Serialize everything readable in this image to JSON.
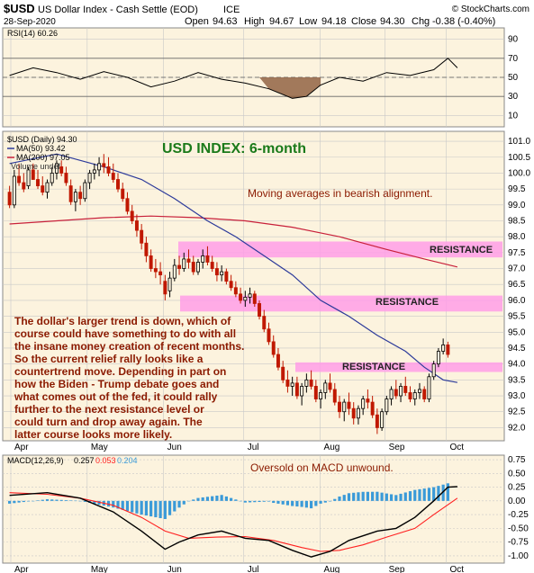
{
  "header": {
    "symbol": "$USD",
    "name": "US Dollar Index - Cash Settle (EOD)",
    "exchange": "ICE",
    "date": "28-Sep-2020",
    "open_label": "Open",
    "open": "94.63",
    "high_label": "High",
    "high": "94.67",
    "low_label": "Low",
    "low": "94.18",
    "close_label": "Close",
    "close": "94.30",
    "chg_label": "Chg",
    "chg": "-0.38 (-0.40%)",
    "credit": "© StockCharts.com"
  },
  "colors": {
    "panel_bg": "#fcf3de",
    "grid": "#c8c8c8",
    "candle_up": "#000000",
    "candle_down": "#c01800",
    "ma50": "#2c3a9a",
    "ma200": "#c8203a",
    "resistance": "#ff9ee8",
    "rsi_line": "#000000",
    "rsi_oversold_fill": "#8b5a3a",
    "macd_line": "#000000",
    "signal_line": "#ff2020",
    "histogram": "#3a9ad8",
    "title_green": "#1a7a1a",
    "annotation_red": "#8b1a00"
  },
  "x_axis": {
    "months": [
      "Apr",
      "May",
      "Jun",
      "Jul",
      "Aug",
      "Sep",
      "Oct"
    ]
  },
  "rsi_panel": {
    "legend": "RSI(14) 60.26",
    "ticks": [
      "90",
      "70",
      "50",
      "30",
      "10"
    ]
  },
  "price_panel": {
    "legend_title": "$USD (Daily) 94.30",
    "legend_ma50": "MA(50) 93.42",
    "legend_ma200": "MA(200) 97.05",
    "legend_volume": "Volume undef",
    "title": "USD INDEX: 6-month",
    "note_ma": "Moving averages in bearish alignment.",
    "resistance_label": "RESISTANCE",
    "commentary": [
      "The dollar's larger trend is down, which of",
      "course could have something to do with all",
      "the insane money creation of recent months.",
      "So the current relief rally looks like a",
      "countertrend move. Depending in part on",
      "how the Biden - Trump debate goes and",
      "what comes out of the fed, it could rally",
      "further to the next resistance level or",
      "could turn and drop away again. The",
      "latter course looks more likely."
    ],
    "ticks": [
      "101.0",
      "100.5",
      "100.0",
      "99.5",
      "99.0",
      "98.5",
      "98.0",
      "97.5",
      "97.0",
      "96.5",
      "96.0",
      "95.5",
      "95.0",
      "94.5",
      "94.0",
      "93.5",
      "93.0",
      "92.5",
      "92.0"
    ]
  },
  "macd_panel": {
    "legend_prefix": "MACD(12,26,9)",
    "legend_macd": "0.257",
    "legend_signal": "0.053",
    "legend_hist": "0.204",
    "note": "Oversold on MACD unwound.",
    "ticks": [
      "0.75",
      "0.50",
      "0.25",
      "0.00",
      "-0.25",
      "-0.50",
      "-0.75",
      "-1.00"
    ]
  },
  "chart_data": {
    "type": "candlestick",
    "title": "USD INDEX: 6-month",
    "ylim": [
      91.7,
      101.2
    ],
    "candles": [
      [
        99.4,
        99.6,
        98.9,
        99.0
      ],
      [
        99.0,
        100.1,
        98.9,
        99.9
      ],
      [
        99.9,
        100.3,
        99.6,
        99.7
      ],
      [
        99.7,
        100.0,
        99.4,
        99.5
      ],
      [
        99.6,
        100.2,
        99.5,
        100.1
      ],
      [
        100.1,
        100.3,
        99.8,
        99.8
      ],
      [
        99.8,
        100.1,
        99.5,
        99.6
      ],
      [
        99.6,
        99.9,
        99.3,
        99.4
      ],
      [
        99.4,
        99.8,
        99.2,
        99.7
      ],
      [
        99.7,
        100.2,
        99.6,
        100.0
      ],
      [
        100.0,
        100.4,
        99.8,
        100.3
      ],
      [
        100.2,
        100.4,
        99.9,
        100.0
      ],
      [
        100.0,
        100.2,
        99.6,
        99.7
      ],
      [
        99.6,
        99.8,
        99.0,
        99.1
      ],
      [
        99.1,
        99.5,
        98.8,
        99.4
      ],
      [
        99.4,
        99.6,
        99.0,
        99.2
      ],
      [
        99.2,
        99.8,
        99.1,
        99.7
      ],
      [
        99.7,
        100.1,
        99.5,
        100.0
      ],
      [
        100.0,
        100.3,
        99.8,
        100.1
      ],
      [
        100.1,
        100.5,
        99.9,
        100.3
      ],
      [
        100.3,
        100.6,
        100.0,
        100.2
      ],
      [
        100.2,
        100.5,
        99.9,
        100.0
      ],
      [
        100.0,
        100.3,
        99.7,
        99.8
      ],
      [
        99.8,
        100.0,
        99.4,
        99.5
      ],
      [
        99.5,
        99.7,
        99.1,
        99.2
      ],
      [
        99.2,
        99.4,
        98.7,
        98.8
      ],
      [
        98.8,
        99.0,
        98.4,
        98.5
      ],
      [
        98.5,
        98.7,
        98.0,
        98.2
      ],
      [
        98.2,
        98.4,
        97.6,
        97.8
      ],
      [
        97.8,
        98.0,
        97.2,
        97.4
      ],
      [
        97.4,
        97.6,
        96.9,
        97.0
      ],
      [
        97.0,
        97.3,
        96.7,
        96.9
      ],
      [
        96.9,
        97.2,
        96.5,
        96.8
      ],
      [
        96.6,
        96.8,
        96.0,
        96.2
      ],
      [
        96.3,
        96.9,
        96.1,
        96.7
      ],
      [
        96.7,
        97.3,
        96.6,
        97.1
      ],
      [
        97.1,
        97.4,
        96.8,
        97.0
      ],
      [
        97.0,
        97.5,
        96.9,
        97.3
      ],
      [
        97.3,
        97.6,
        97.0,
        97.2
      ],
      [
        97.2,
        97.4,
        96.8,
        96.9
      ],
      [
        96.9,
        97.3,
        96.8,
        97.2
      ],
      [
        97.2,
        97.6,
        97.0,
        97.4
      ],
      [
        97.4,
        97.7,
        97.1,
        97.2
      ],
      [
        97.2,
        97.4,
        96.9,
        97.0
      ],
      [
        97.0,
        97.2,
        96.6,
        96.8
      ],
      [
        96.8,
        97.1,
        96.6,
        96.9
      ],
      [
        96.9,
        97.0,
        96.5,
        96.6
      ],
      [
        96.6,
        96.8,
        96.3,
        96.4
      ],
      [
        96.4,
        96.6,
        96.1,
        96.2
      ],
      [
        96.2,
        96.4,
        95.9,
        96.0
      ],
      [
        96.0,
        96.3,
        95.8,
        96.1
      ],
      [
        96.1,
        96.4,
        95.9,
        96.2
      ],
      [
        96.2,
        96.3,
        95.8,
        95.9
      ],
      [
        95.9,
        96.0,
        95.4,
        95.5
      ],
      [
        95.5,
        95.7,
        95.0,
        95.1
      ],
      [
        95.1,
        95.3,
        94.6,
        94.7
      ],
      [
        94.7,
        94.9,
        94.2,
        94.3
      ],
      [
        94.3,
        94.5,
        93.8,
        93.9
      ],
      [
        93.9,
        94.1,
        93.4,
        93.5
      ],
      [
        93.5,
        93.8,
        93.1,
        93.3
      ],
      [
        93.3,
        93.6,
        93.0,
        93.4
      ],
      [
        93.4,
        93.6,
        92.9,
        93.0
      ],
      [
        93.0,
        93.4,
        92.7,
        93.3
      ],
      [
        93.3,
        93.7,
        93.1,
        93.5
      ],
      [
        93.5,
        93.8,
        93.2,
        93.3
      ],
      [
        93.3,
        93.5,
        92.8,
        92.9
      ],
      [
        92.9,
        93.2,
        92.6,
        93.1
      ],
      [
        93.1,
        93.5,
        92.9,
        93.4
      ],
      [
        93.4,
        93.7,
        93.1,
        93.2
      ],
      [
        93.2,
        93.4,
        92.7,
        92.8
      ],
      [
        92.8,
        93.0,
        92.3,
        92.5
      ],
      [
        92.5,
        92.9,
        92.2,
        92.8
      ],
      [
        92.8,
        93.1,
        92.4,
        92.6
      ],
      [
        92.6,
        92.8,
        92.1,
        92.3
      ],
      [
        92.3,
        92.7,
        92.1,
        92.6
      ],
      [
        92.6,
        93.0,
        92.4,
        92.9
      ],
      [
        92.9,
        93.2,
        92.6,
        92.8
      ],
      [
        92.8,
        93.0,
        92.3,
        92.4
      ],
      [
        92.4,
        92.6,
        91.8,
        92.0
      ],
      [
        92.0,
        92.6,
        91.9,
        92.5
      ],
      [
        92.5,
        93.0,
        92.4,
        92.9
      ],
      [
        92.9,
        93.3,
        92.7,
        93.2
      ],
      [
        93.2,
        93.5,
        92.9,
        93.0
      ],
      [
        93.0,
        93.4,
        92.8,
        93.3
      ],
      [
        93.3,
        93.6,
        93.0,
        93.1
      ],
      [
        93.1,
        93.3,
        92.8,
        92.9
      ],
      [
        92.9,
        93.2,
        92.7,
        93.1
      ],
      [
        93.1,
        93.4,
        92.9,
        93.2
      ],
      [
        93.2,
        93.3,
        92.8,
        92.9
      ],
      [
        92.9,
        93.7,
        92.8,
        93.6
      ],
      [
        93.6,
        94.1,
        93.5,
        94.0
      ],
      [
        94.0,
        94.5,
        93.9,
        94.4
      ],
      [
        94.4,
        94.8,
        94.3,
        94.6
      ],
      [
        94.6,
        94.7,
        94.2,
        94.3
      ]
    ],
    "ma50": [
      [
        0,
        100.3
      ],
      [
        10,
        100.6
      ],
      [
        20,
        100.2
      ],
      [
        28,
        99.8
      ],
      [
        35,
        99.2
      ],
      [
        42,
        98.5
      ],
      [
        48,
        98.0
      ],
      [
        54,
        97.4
      ],
      [
        60,
        96.8
      ],
      [
        66,
        96.0
      ],
      [
        72,
        95.5
      ],
      [
        78,
        94.9
      ],
      [
        84,
        94.4
      ],
      [
        88,
        93.9
      ],
      [
        92,
        93.5
      ],
      [
        95,
        93.42
      ]
    ],
    "ma200": [
      [
        0,
        98.4
      ],
      [
        10,
        98.5
      ],
      [
        20,
        98.6
      ],
      [
        30,
        98.65
      ],
      [
        40,
        98.6
      ],
      [
        50,
        98.5
      ],
      [
        60,
        98.3
      ],
      [
        70,
        98.0
      ],
      [
        80,
        97.6
      ],
      [
        88,
        97.3
      ],
      [
        95,
        97.05
      ]
    ],
    "resistance_zones": [
      [
        97.35,
        97.85
      ],
      [
        95.65,
        96.15
      ],
      [
        93.75,
        94.05
      ]
    ],
    "rsi": [
      [
        0,
        52
      ],
      [
        5,
        60
      ],
      [
        10,
        55
      ],
      [
        15,
        48
      ],
      [
        20,
        56
      ],
      [
        25,
        50
      ],
      [
        30,
        40
      ],
      [
        35,
        46
      ],
      [
        40,
        55
      ],
      [
        45,
        48
      ],
      [
        50,
        44
      ],
      [
        55,
        38
      ],
      [
        60,
        28
      ],
      [
        63,
        30
      ],
      [
        66,
        42
      ],
      [
        70,
        50
      ],
      [
        75,
        46
      ],
      [
        80,
        55
      ],
      [
        85,
        52
      ],
      [
        90,
        58
      ],
      [
        93,
        70
      ],
      [
        95,
        60
      ]
    ],
    "macd": [
      [
        0,
        0.1
      ],
      [
        8,
        0.15
      ],
      [
        15,
        0.05
      ],
      [
        22,
        -0.2
      ],
      [
        28,
        -0.55
      ],
      [
        33,
        -0.88
      ],
      [
        36,
        -0.75
      ],
      [
        40,
        -0.62
      ],
      [
        45,
        -0.55
      ],
      [
        50,
        -0.68
      ],
      [
        55,
        -0.72
      ],
      [
        60,
        -0.9
      ],
      [
        64,
        -1.02
      ],
      [
        68,
        -0.92
      ],
      [
        72,
        -0.72
      ],
      [
        78,
        -0.55
      ],
      [
        82,
        -0.5
      ],
      [
        86,
        -0.3
      ],
      [
        90,
        0.0
      ],
      [
        93,
        0.25
      ],
      [
        95,
        0.26
      ]
    ],
    "signal": [
      [
        0,
        0.15
      ],
      [
        8,
        0.12
      ],
      [
        15,
        0.05
      ],
      [
        22,
        -0.08
      ],
      [
        28,
        -0.3
      ],
      [
        33,
        -0.55
      ],
      [
        38,
        -0.68
      ],
      [
        44,
        -0.66
      ],
      [
        50,
        -0.65
      ],
      [
        56,
        -0.72
      ],
      [
        62,
        -0.85
      ],
      [
        66,
        -0.92
      ],
      [
        70,
        -0.9
      ],
      [
        75,
        -0.8
      ],
      [
        80,
        -0.66
      ],
      [
        86,
        -0.5
      ],
      [
        90,
        -0.25
      ],
      [
        95,
        0.05
      ]
    ],
    "macd_ylim": [
      -1.1,
      0.8
    ]
  }
}
